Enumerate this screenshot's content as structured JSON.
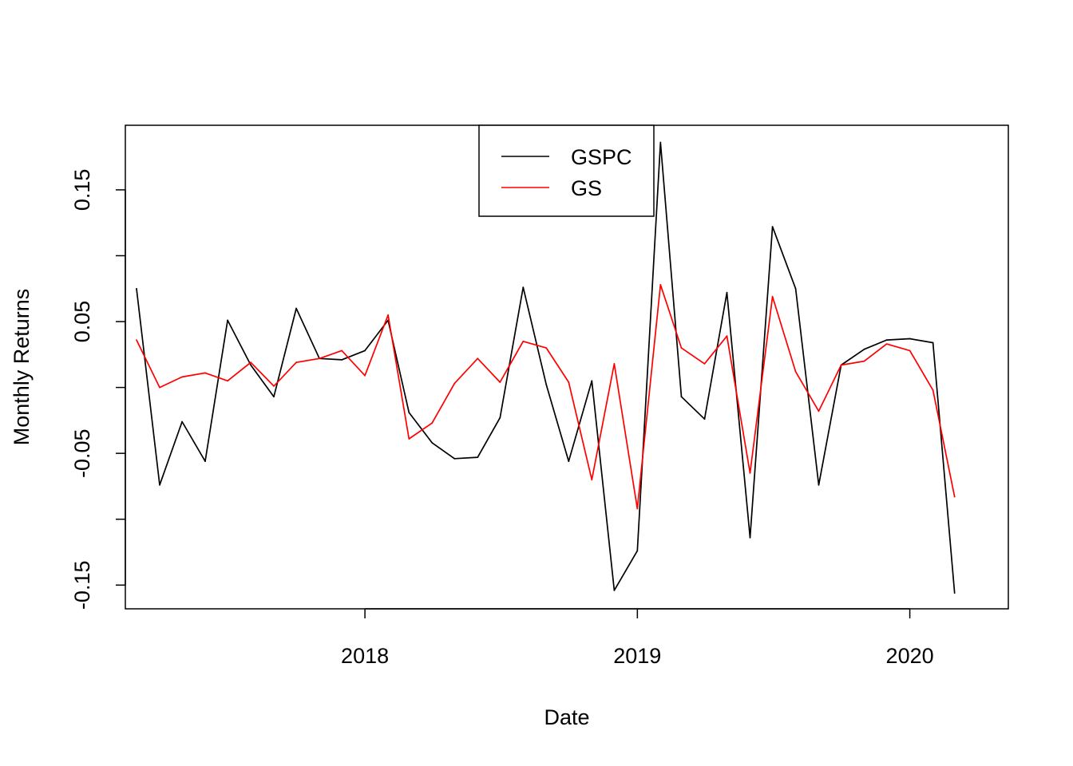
{
  "chart_data": {
    "type": "line",
    "title": "",
    "xlabel": "Date",
    "ylabel": "Monthly Returns",
    "x_ticks": [
      "2018",
      "2019",
      "2020"
    ],
    "y_ticks": [
      "-0.15",
      "-0.05",
      "0.05",
      "0.15"
    ],
    "ylim": [
      -0.168,
      0.199
    ],
    "xlim": [
      "2017-02-14",
      "2020-05-12"
    ],
    "legend_position": "top-center",
    "grid": false,
    "x": [
      "2017-03-01",
      "2017-04-01",
      "2017-05-01",
      "2017-06-01",
      "2017-07-01",
      "2017-08-01",
      "2017-09-01",
      "2017-10-01",
      "2017-11-01",
      "2017-12-01",
      "2018-01-01",
      "2018-02-01",
      "2018-03-01",
      "2018-04-01",
      "2018-05-01",
      "2018-06-01",
      "2018-07-01",
      "2018-08-01",
      "2018-09-01",
      "2018-10-01",
      "2018-11-01",
      "2018-12-01",
      "2019-01-01",
      "2019-02-01",
      "2019-03-01",
      "2019-04-01",
      "2019-05-01",
      "2019-06-01",
      "2019-07-01",
      "2019-08-01",
      "2019-09-01",
      "2019-10-01",
      "2019-11-01",
      "2019-12-01",
      "2020-01-01",
      "2020-02-01",
      "2020-03-01"
    ],
    "series": [
      {
        "name": "GSPC",
        "color": "#000000",
        "values": [
          0.075,
          -0.074,
          -0.026,
          -0.056,
          0.051,
          0.017,
          -0.007,
          0.06,
          0.022,
          0.021,
          0.028,
          0.051,
          -0.019,
          -0.042,
          -0.054,
          -0.053,
          -0.023,
          0.076,
          0.002,
          -0.056,
          0.005,
          -0.154,
          -0.124,
          0.186,
          -0.007,
          -0.024,
          0.072,
          -0.114,
          0.122,
          0.075,
          -0.074,
          0.017,
          0.029,
          0.036,
          0.037,
          0.034,
          -0.156
        ]
      },
      {
        "name": "GS",
        "color": "#ff0000",
        "values": [
          0.036,
          0.0,
          0.008,
          0.011,
          0.005,
          0.019,
          0.001,
          0.019,
          0.022,
          0.028,
          0.009,
          0.055,
          -0.039,
          -0.027,
          0.003,
          0.022,
          0.004,
          0.035,
          0.03,
          0.004,
          -0.07,
          0.018,
          -0.092,
          0.078,
          0.03,
          0.018,
          0.039,
          -0.065,
          0.069,
          0.012,
          -0.018,
          0.017,
          0.02,
          0.033,
          0.028,
          -0.002,
          -0.083
        ]
      }
    ]
  }
}
